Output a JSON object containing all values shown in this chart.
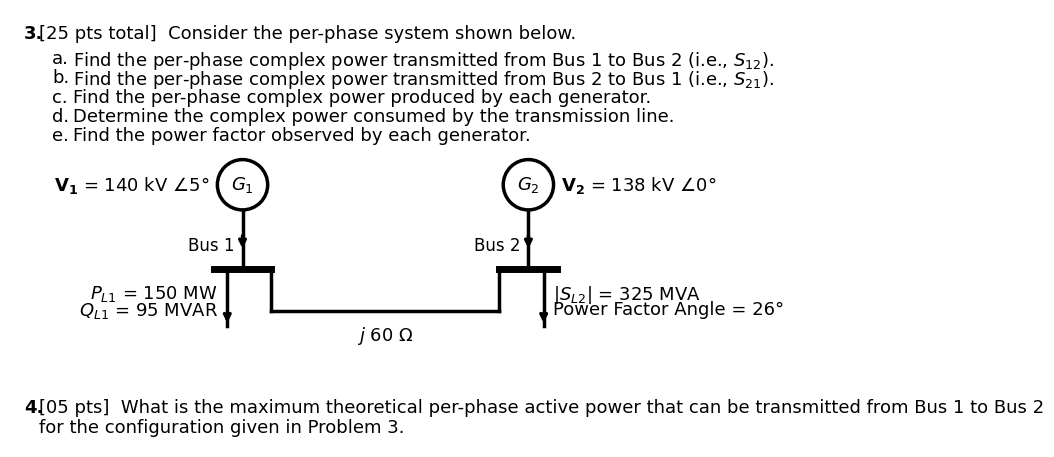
{
  "background_color": "#ffffff",
  "title_text": "3. [25 pts total] Consider the per-phase system shown below.",
  "items": [
    "a.  Find the per-phase complex power transmitted from Bus 1 to Bus 2 (i.e., $S_{12}$).",
    "b.  Find the per-phase complex power transmitted from Bus 2 to Bus 1 (i.e., $S_{21}$).",
    "c.  Find the per-phase complex power produced by each generator.",
    "d.  Determine the complex power consumed by the transmission line.",
    "e.  Find the power factor observed by each generator."
  ],
  "V1_label": "$\\mathbf{V_1}$ = 140 kV ∠5°",
  "V2_label": "$\\mathbf{V_2}$ = 138 kV ∠0°",
  "G1_label": "G₁",
  "G2_label": "G₂",
  "bus1_label": "Bus 1",
  "bus2_label": "Bus 2",
  "PL1_label": "$P_{L1}$ = 150 MW",
  "QL1_label": "$Q_{L1}$ = 95 MVAR",
  "line_label": "$j$ 60 Ω",
  "SL2_label": "$|S_{L2}|$ = 325 MVA",
  "pf_label": "Power Factor Angle = 26°",
  "problem4_text": "4. [05 pts] What is the maximum theoretical per-phase active power that can be transmitted from Bus 1 to Bus 2",
  "problem4_text2": "    for the configuration given in Problem 3.",
  "font_size": 13,
  "diagram_font_size": 13
}
